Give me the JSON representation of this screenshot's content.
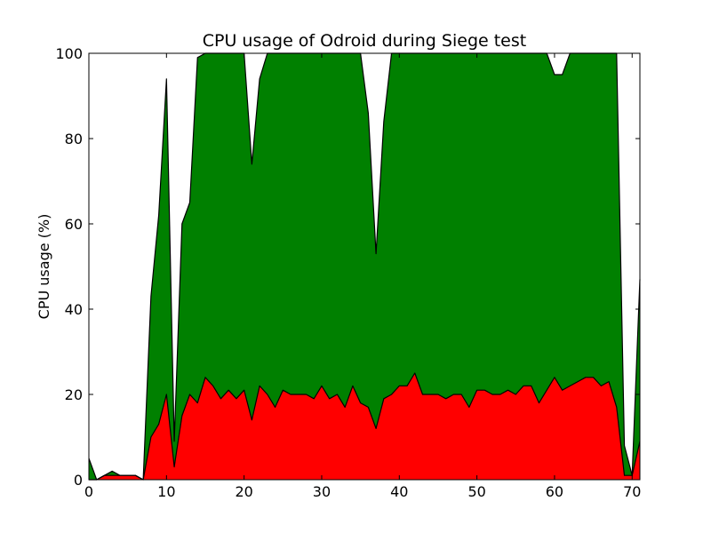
{
  "chart_data": {
    "type": "area",
    "title": "CPU usage of Odroid during Siege test",
    "xlabel": "",
    "ylabel": "CPU usage (%)",
    "xlim": [
      0,
      71
    ],
    "ylim": [
      0,
      100
    ],
    "xticks": [
      0,
      10,
      20,
      30,
      40,
      50,
      60,
      70
    ],
    "yticks": [
      0,
      20,
      40,
      60,
      80,
      100
    ],
    "stacked": true,
    "grid": false,
    "legend": "none",
    "x": [
      0,
      1,
      2,
      3,
      4,
      5,
      6,
      7,
      8,
      9,
      10,
      11,
      12,
      13,
      14,
      15,
      16,
      17,
      18,
      19,
      20,
      21,
      22,
      23,
      24,
      25,
      26,
      27,
      28,
      29,
      30,
      31,
      32,
      33,
      34,
      35,
      36,
      37,
      38,
      39,
      40,
      41,
      42,
      43,
      44,
      45,
      46,
      47,
      48,
      49,
      50,
      51,
      52,
      53,
      54,
      55,
      56,
      57,
      58,
      59,
      60,
      61,
      62,
      63,
      64,
      65,
      66,
      67,
      68,
      69,
      70,
      71
    ],
    "series": [
      {
        "color": "#ff0000",
        "values": [
          0,
          0,
          1,
          1,
          1,
          1,
          1,
          0,
          10,
          13,
          20,
          3,
          15,
          20,
          18,
          24,
          22,
          19,
          21,
          19,
          21,
          14,
          22,
          20,
          17,
          21,
          20,
          20,
          20,
          19,
          22,
          19,
          20,
          17,
          22,
          18,
          17,
          12,
          19,
          20,
          22,
          22,
          25,
          20,
          20,
          20,
          19,
          20,
          20,
          17,
          21,
          21,
          20,
          20,
          21,
          20,
          22,
          22,
          18,
          21,
          24,
          21,
          22,
          23,
          24,
          24,
          22,
          23,
          17,
          1,
          1,
          9
        ]
      },
      {
        "color": "#008000",
        "values": [
          5,
          0,
          0,
          1,
          0,
          0,
          0,
          0,
          33,
          49,
          74,
          6,
          45,
          45,
          81,
          76,
          78,
          81,
          79,
          81,
          79,
          60,
          72,
          80,
          83,
          79,
          80,
          80,
          80,
          81,
          78,
          81,
          80,
          83,
          78,
          82,
          69,
          41,
          65,
          80,
          78,
          78,
          75,
          80,
          80,
          80,
          81,
          80,
          80,
          83,
          79,
          79,
          80,
          80,
          79,
          80,
          78,
          78,
          82,
          79,
          71,
          74,
          78,
          77,
          76,
          76,
          78,
          77,
          83,
          7,
          0,
          38
        ]
      }
    ]
  }
}
